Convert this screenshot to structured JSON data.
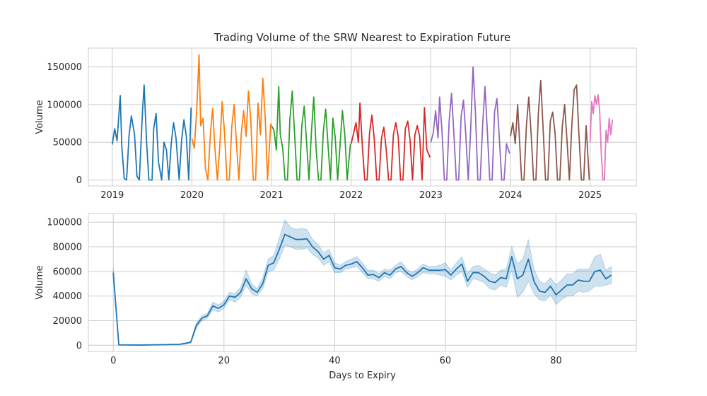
{
  "chart_data": [
    {
      "type": "line",
      "title": "Trading Volume of the SRW Nearest to Expiration Future",
      "xlabel": "",
      "ylabel": "Volume",
      "xlim": [
        2018.7,
        2025.58
      ],
      "ylim": [
        -8000,
        175000
      ],
      "x_ticks": [
        2019,
        2020,
        2021,
        2022,
        2023,
        2024,
        2025
      ],
      "x_tick_labels": [
        "2019",
        "2020",
        "2021",
        "2022",
        "2023",
        "2024",
        "2025"
      ],
      "y_ticks": [
        0,
        50000,
        100000,
        150000
      ],
      "y_tick_labels": [
        "0",
        "50000",
        "100000",
        "150000"
      ],
      "grid": true,
      "legend": "none",
      "series": [
        {
          "color": "#1f77b4",
          "x": [
            2019.0,
            2019.03,
            2019.06,
            2019.1,
            2019.12,
            2019.15,
            2019.18,
            2019.21,
            2019.24,
            2019.28,
            2019.31,
            2019.34,
            2019.38,
            2019.4,
            2019.43,
            2019.46,
            2019.5,
            2019.52,
            2019.55,
            2019.58,
            2019.62,
            2019.65,
            2019.68,
            2019.71,
            2019.74,
            2019.77,
            2019.8,
            2019.84,
            2019.87,
            2019.9,
            2019.93,
            2019.96,
            2019.99
          ],
          "y": [
            47000,
            68000,
            52000,
            112000,
            44000,
            2000,
            0,
            58000,
            85000,
            60000,
            5000,
            0,
            92000,
            126000,
            52000,
            0,
            0,
            68000,
            88000,
            24000,
            0,
            50000,
            40000,
            0,
            48000,
            76000,
            56000,
            0,
            52000,
            80000,
            58000,
            0,
            96000
          ]
        },
        {
          "color": "#ff7f0e",
          "x": [
            2020.0,
            2020.03,
            2020.06,
            2020.09,
            2020.11,
            2020.14,
            2020.17,
            2020.2,
            2020.23,
            2020.26,
            2020.29,
            2020.32,
            2020.35,
            2020.38,
            2020.41,
            2020.44,
            2020.47,
            2020.5,
            2020.53,
            2020.56,
            2020.59,
            2020.62,
            2020.65,
            2020.68,
            2020.71,
            2020.74,
            2020.77,
            2020.8,
            2020.83,
            2020.86,
            2020.89,
            2020.92,
            2020.95,
            2020.99
          ],
          "y": [
            55000,
            42000,
            92000,
            166000,
            72000,
            82000,
            15000,
            0,
            58000,
            95000,
            40000,
            0,
            45000,
            104000,
            62000,
            0,
            0,
            70000,
            100000,
            48000,
            0,
            62000,
            92000,
            58000,
            118000,
            78000,
            0,
            0,
            102000,
            60000,
            135000,
            84000,
            0,
            75000
          ]
        },
        {
          "color": "#2ca02c",
          "x": [
            2021.0,
            2021.03,
            2021.06,
            2021.09,
            2021.11,
            2021.14,
            2021.17,
            2021.2,
            2021.23,
            2021.26,
            2021.29,
            2021.32,
            2021.35,
            2021.38,
            2021.41,
            2021.44,
            2021.47,
            2021.5,
            2021.53,
            2021.56,
            2021.59,
            2021.62,
            2021.65,
            2021.68,
            2021.71,
            2021.74,
            2021.77,
            2021.8,
            2021.83,
            2021.86,
            2021.89,
            2021.92,
            2021.95,
            2021.99
          ],
          "y": [
            72000,
            66000,
            40000,
            124000,
            60000,
            42000,
            0,
            0,
            80000,
            118000,
            60000,
            0,
            0,
            72000,
            98000,
            50000,
            0,
            62000,
            110000,
            40000,
            0,
            0,
            64000,
            94000,
            45000,
            0,
            82000,
            56000,
            0,
            46000,
            92000,
            60000,
            0,
            48000
          ]
        },
        {
          "color": "#d62728",
          "x": [
            2022.0,
            2022.03,
            2022.06,
            2022.09,
            2022.11,
            2022.14,
            2022.17,
            2022.2,
            2022.23,
            2022.26,
            2022.29,
            2022.32,
            2022.35,
            2022.38,
            2022.41,
            2022.44,
            2022.47,
            2022.5,
            2022.53,
            2022.56,
            2022.59,
            2022.62,
            2022.65,
            2022.68,
            2022.71,
            2022.74,
            2022.77,
            2022.8,
            2022.83,
            2022.86,
            2022.89,
            2022.92,
            2022.95,
            2022.99
          ],
          "y": [
            48000,
            62000,
            76000,
            50000,
            102000,
            45000,
            0,
            0,
            62000,
            86000,
            54000,
            0,
            0,
            55000,
            70000,
            40000,
            0,
            0,
            60000,
            76000,
            58000,
            0,
            0,
            68000,
            78000,
            52000,
            0,
            60000,
            72000,
            58000,
            0,
            96000,
            40000,
            30000
          ]
        },
        {
          "color": "#9467bd",
          "x": [
            2023.0,
            2023.03,
            2023.06,
            2023.09,
            2023.11,
            2023.14,
            2023.17,
            2023.2,
            2023.23,
            2023.26,
            2023.29,
            2023.32,
            2023.35,
            2023.38,
            2023.41,
            2023.44,
            2023.47,
            2023.5,
            2023.53,
            2023.56,
            2023.59,
            2023.62,
            2023.65,
            2023.68,
            2023.71,
            2023.74,
            2023.77,
            2023.8,
            2023.83,
            2023.86,
            2023.89,
            2023.92,
            2023.95,
            2023.99
          ],
          "y": [
            50000,
            62000,
            92000,
            56000,
            110000,
            65000,
            0,
            0,
            78000,
            115000,
            60000,
            0,
            0,
            84000,
            106000,
            58000,
            0,
            66000,
            150000,
            90000,
            0,
            0,
            72000,
            124000,
            64000,
            0,
            0,
            90000,
            108000,
            56000,
            0,
            0,
            48000,
            35000
          ]
        },
        {
          "color": "#8c564b",
          "x": [
            2024.0,
            2024.03,
            2024.06,
            2024.09,
            2024.11,
            2024.14,
            2024.17,
            2024.2,
            2024.23,
            2024.26,
            2024.29,
            2024.32,
            2024.35,
            2024.38,
            2024.41,
            2024.44,
            2024.47,
            2024.5,
            2024.53,
            2024.56,
            2024.59,
            2024.62,
            2024.65,
            2024.68,
            2024.71,
            2024.74,
            2024.77,
            2024.8,
            2024.83,
            2024.86,
            2024.89,
            2024.92,
            2024.95,
            2024.99
          ],
          "y": [
            58000,
            76000,
            48000,
            100000,
            60000,
            0,
            0,
            72000,
            110000,
            60000,
            0,
            0,
            88000,
            132000,
            68000,
            0,
            0,
            78000,
            90000,
            62000,
            0,
            0,
            70000,
            100000,
            52000,
            0,
            72000,
            120000,
            126000,
            60000,
            0,
            0,
            72000,
            0
          ]
        },
        {
          "color": "#e377c2",
          "x": [
            2025.0,
            2025.02,
            2025.04,
            2025.06,
            2025.08,
            2025.1,
            2025.12,
            2025.14,
            2025.16,
            2025.18,
            2025.2,
            2025.22,
            2025.24,
            2025.26,
            2025.28
          ],
          "y": [
            50000,
            104000,
            88000,
            112000,
            100000,
            113000,
            92000,
            36000,
            0,
            0,
            66000,
            50000,
            82000,
            60000,
            80000
          ]
        }
      ]
    },
    {
      "type": "line",
      "title": "",
      "xlabel": "Days to Expiry",
      "ylabel": "Volume",
      "xlim": [
        -4.5,
        94.5
      ],
      "ylim": [
        -5000,
        107000
      ],
      "x_ticks": [
        0,
        20,
        40,
        60,
        80
      ],
      "x_tick_labels": [
        "0",
        "20",
        "40",
        "60",
        "80"
      ],
      "y_ticks": [
        0,
        20000,
        40000,
        60000,
        80000,
        100000
      ],
      "y_tick_labels": [
        "0",
        "20000",
        "40000",
        "60000",
        "80000",
        "100000"
      ],
      "grid": true,
      "legend": "none",
      "series": [
        {
          "color": "#1f77b4",
          "x": [
            0,
            1,
            5,
            10,
            12,
            13,
            14,
            15,
            16,
            17,
            18,
            19,
            20,
            21,
            22,
            23,
            24,
            25,
            26,
            27,
            28,
            29,
            30,
            31,
            32,
            33,
            34,
            35,
            36,
            37,
            38,
            39,
            40,
            41,
            42,
            43,
            44,
            45,
            46,
            47,
            48,
            49,
            50,
            51,
            52,
            53,
            54,
            55,
            56,
            57,
            58,
            59,
            60,
            61,
            62,
            63,
            64,
            65,
            66,
            67,
            68,
            69,
            70,
            71,
            72,
            73,
            74,
            75,
            76,
            77,
            78,
            79,
            80,
            81,
            82,
            83,
            84,
            85,
            86,
            87,
            88,
            89,
            90
          ],
          "y": [
            59000,
            300,
            200,
            600,
            800,
            1500,
            2500,
            16000,
            22000,
            24000,
            32000,
            30000,
            33000,
            40000,
            39000,
            43000,
            54000,
            46000,
            43000,
            50000,
            65000,
            67000,
            78000,
            90000,
            88000,
            86000,
            86000,
            86500,
            80000,
            76000,
            70000,
            73000,
            63000,
            62000,
            65000,
            66000,
            68000,
            63000,
            57000,
            57500,
            55000,
            59000,
            57000,
            62000,
            64000,
            59000,
            56000,
            59000,
            63000,
            61000,
            61000,
            61000,
            61500,
            57000,
            62000,
            66000,
            52000,
            59000,
            59000,
            56000,
            52000,
            51000,
            55000,
            54000,
            72000,
            54000,
            57000,
            70000,
            52000,
            44000,
            43000,
            48000,
            41000,
            45000,
            49000,
            49000,
            53000,
            52000,
            52000,
            60000,
            61000,
            54000,
            57000
          ],
          "lower": [
            54000,
            0,
            0,
            300,
            500,
            1000,
            1800,
            14000,
            20000,
            22000,
            29000,
            27000,
            30000,
            37000,
            35000,
            39000,
            49000,
            42000,
            40000,
            46000,
            60000,
            61000,
            70000,
            81000,
            80000,
            78000,
            78000,
            79000,
            74000,
            71000,
            65000,
            68000,
            59000,
            59000,
            62000,
            63000,
            64000,
            59000,
            54000,
            54000,
            52000,
            56000,
            54000,
            59000,
            60000,
            56000,
            53000,
            56000,
            59000,
            58000,
            58000,
            57000,
            56000,
            53000,
            57000,
            60000,
            47000,
            54000,
            53000,
            51000,
            46000,
            45000,
            49000,
            47000,
            61000,
            39000,
            43000,
            52000,
            42000,
            37000,
            36000,
            41000,
            33000,
            37000,
            40000,
            40000,
            44000,
            43000,
            44000,
            48000,
            48000,
            49000,
            50000
          ],
          "upper": [
            63000,
            800,
            600,
            900,
            1100,
            2000,
            3200,
            18000,
            24000,
            26000,
            35000,
            33000,
            36000,
            43000,
            42000,
            47000,
            61000,
            50000,
            46000,
            55000,
            70000,
            73000,
            87000,
            102000,
            96000,
            94000,
            95000,
            94000,
            86000,
            82000,
            75000,
            78000,
            67000,
            65000,
            68000,
            70000,
            72000,
            67000,
            61000,
            61000,
            58000,
            62000,
            61000,
            65000,
            68000,
            62000,
            59000,
            62000,
            66000,
            64000,
            64000,
            65000,
            67000,
            61000,
            67000,
            72000,
            58000,
            64000,
            65000,
            62000,
            59000,
            57000,
            61000,
            62000,
            80000,
            66000,
            70000,
            86000,
            62000,
            52000,
            50000,
            55000,
            49000,
            53000,
            58000,
            58000,
            62000,
            62000,
            62000,
            72000,
            74000,
            61000,
            64000
          ]
        }
      ]
    }
  ]
}
